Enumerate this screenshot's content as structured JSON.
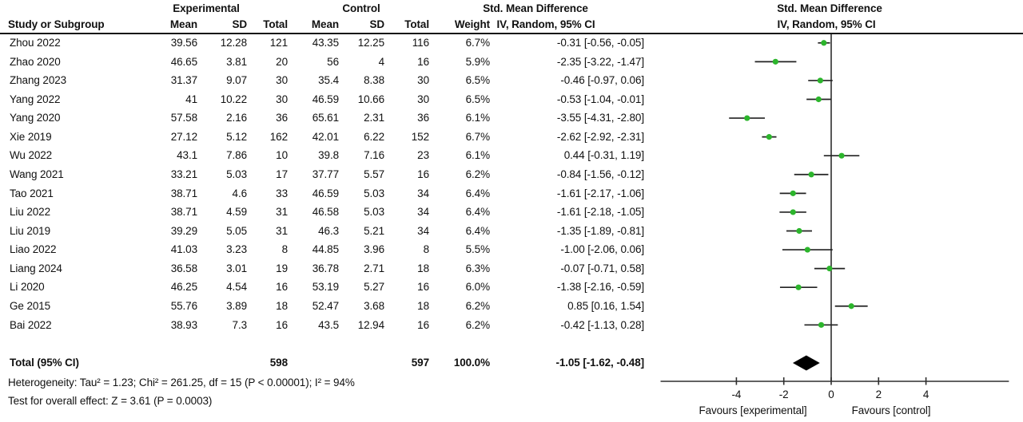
{
  "header": {
    "study_col": "Study or Subgroup",
    "experimental": "Experimental",
    "control": "Control",
    "mean": "Mean",
    "sd": "SD",
    "total": "Total",
    "weight": "Weight",
    "smd_title": "Std. Mean Difference",
    "smd_sub": "IV, Random, 95% CI",
    "plot_title": "Std. Mean Difference",
    "plot_sub": "IV, Random, 95% CI"
  },
  "chart_data": {
    "type": "forest",
    "effect_measure": "Std. Mean Difference",
    "model": "IV, Random, 95% CI",
    "studies": [
      {
        "name": "Zhou 2022",
        "mean1": "39.56",
        "sd1": "12.28",
        "n1": "121",
        "mean2": "43.35",
        "sd2": "12.25",
        "n2": "116",
        "weight": "6.7%",
        "ci_text": "-0.31 [-0.56, -0.05]",
        "est": -0.31,
        "lo": -0.56,
        "hi": -0.05
      },
      {
        "name": "Zhao 2020",
        "mean1": "46.65",
        "sd1": "3.81",
        "n1": "20",
        "mean2": "56",
        "sd2": "4",
        "n2": "16",
        "weight": "5.9%",
        "ci_text": "-2.35 [-3.22, -1.47]",
        "est": -2.35,
        "lo": -3.22,
        "hi": -1.47
      },
      {
        "name": "Zhang 2023",
        "mean1": "31.37",
        "sd1": "9.07",
        "n1": "30",
        "mean2": "35.4",
        "sd2": "8.38",
        "n2": "30",
        "weight": "6.5%",
        "ci_text": "-0.46 [-0.97, 0.06]",
        "est": -0.46,
        "lo": -0.97,
        "hi": 0.06
      },
      {
        "name": "Yang 2022",
        "mean1": "41",
        "sd1": "10.22",
        "n1": "30",
        "mean2": "46.59",
        "sd2": "10.66",
        "n2": "30",
        "weight": "6.5%",
        "ci_text": "-0.53 [-1.04, -0.01]",
        "est": -0.53,
        "lo": -1.04,
        "hi": -0.01
      },
      {
        "name": "Yang 2020",
        "mean1": "57.58",
        "sd1": "2.16",
        "n1": "36",
        "mean2": "65.61",
        "sd2": "2.31",
        "n2": "36",
        "weight": "6.1%",
        "ci_text": "-3.55 [-4.31, -2.80]",
        "est": -3.55,
        "lo": -4.31,
        "hi": -2.8
      },
      {
        "name": "Xie 2019",
        "mean1": "27.12",
        "sd1": "5.12",
        "n1": "162",
        "mean2": "42.01",
        "sd2": "6.22",
        "n2": "152",
        "weight": "6.7%",
        "ci_text": "-2.62 [-2.92, -2.31]",
        "est": -2.62,
        "lo": -2.92,
        "hi": -2.31
      },
      {
        "name": "Wu 2022",
        "mean1": "43.1",
        "sd1": "7.86",
        "n1": "10",
        "mean2": "39.8",
        "sd2": "7.16",
        "n2": "23",
        "weight": "6.1%",
        "ci_text": "0.44 [-0.31, 1.19]",
        "est": 0.44,
        "lo": -0.31,
        "hi": 1.19
      },
      {
        "name": "Wang 2021",
        "mean1": "33.21",
        "sd1": "5.03",
        "n1": "17",
        "mean2": "37.77",
        "sd2": "5.57",
        "n2": "16",
        "weight": "6.2%",
        "ci_text": "-0.84 [-1.56, -0.12]",
        "est": -0.84,
        "lo": -1.56,
        "hi": -0.12
      },
      {
        "name": "Tao 2021",
        "mean1": "38.71",
        "sd1": "4.6",
        "n1": "33",
        "mean2": "46.59",
        "sd2": "5.03",
        "n2": "34",
        "weight": "6.4%",
        "ci_text": "-1.61 [-2.17, -1.06]",
        "est": -1.61,
        "lo": -2.17,
        "hi": -1.06
      },
      {
        "name": "Liu 2022",
        "mean1": "38.71",
        "sd1": "4.59",
        "n1": "31",
        "mean2": "46.58",
        "sd2": "5.03",
        "n2": "34",
        "weight": "6.4%",
        "ci_text": "-1.61 [-2.18, -1.05]",
        "est": -1.61,
        "lo": -2.18,
        "hi": -1.05
      },
      {
        "name": "Liu 2019",
        "mean1": "39.29",
        "sd1": "5.05",
        "n1": "31",
        "mean2": "46.3",
        "sd2": "5.21",
        "n2": "34",
        "weight": "6.4%",
        "ci_text": "-1.35 [-1.89, -0.81]",
        "est": -1.35,
        "lo": -1.89,
        "hi": -0.81
      },
      {
        "name": "Liao 2022",
        "mean1": "41.03",
        "sd1": "3.23",
        "n1": "8",
        "mean2": "44.85",
        "sd2": "3.96",
        "n2": "8",
        "weight": "5.5%",
        "ci_text": "-1.00 [-2.06, 0.06]",
        "est": -1.0,
        "lo": -2.06,
        "hi": 0.06
      },
      {
        "name": "Liang 2024",
        "mean1": "36.58",
        "sd1": "3.01",
        "n1": "19",
        "mean2": "36.78",
        "sd2": "2.71",
        "n2": "18",
        "weight": "6.3%",
        "ci_text": "-0.07 [-0.71, 0.58]",
        "est": -0.07,
        "lo": -0.71,
        "hi": 0.58
      },
      {
        "name": "Li 2020",
        "mean1": "46.25",
        "sd1": "4.54",
        "n1": "16",
        "mean2": "53.19",
        "sd2": "5.27",
        "n2": "16",
        "weight": "6.0%",
        "ci_text": "-1.38 [-2.16, -0.59]",
        "est": -1.38,
        "lo": -2.16,
        "hi": -0.59
      },
      {
        "name": "Ge 2015",
        "mean1": "55.76",
        "sd1": "3.89",
        "n1": "18",
        "mean2": "52.47",
        "sd2": "3.68",
        "n2": "18",
        "weight": "6.2%",
        "ci_text": "0.85 [0.16, 1.54]",
        "est": 0.85,
        "lo": 0.16,
        "hi": 1.54
      },
      {
        "name": "Bai 2022",
        "mean1": "38.93",
        "sd1": "7.3",
        "n1": "16",
        "mean2": "43.5",
        "sd2": "12.94",
        "n2": "16",
        "weight": "6.2%",
        "ci_text": "-0.42 [-1.13, 0.28]",
        "est": -0.42,
        "lo": -1.13,
        "hi": 0.28
      }
    ],
    "total": {
      "label": "Total (95% CI)",
      "n1": "598",
      "n2": "597",
      "weight": "100.0%",
      "ci_text": "-1.05 [-1.62, -0.48]",
      "est": -1.05,
      "lo": -1.62,
      "hi": -0.48
    },
    "heterogeneity": "Heterogeneity: Tau² = 1.23; Chi² = 261.25, df = 15 (P < 0.00001); I² = 94%",
    "overall_effect": "Test for overall effect: Z = 3.61 (P = 0.0003)",
    "axis": {
      "ticks": [
        -4,
        -2,
        0,
        2,
        4
      ],
      "range": [
        -7.2,
        7.5
      ],
      "favours_left": "Favours [experimental]",
      "favours_right": "Favours [control]"
    }
  },
  "colors": {
    "marker_green": "#2cb52c",
    "line": "#2e2e2e",
    "diamond": "#000000",
    "text": "#111111"
  }
}
